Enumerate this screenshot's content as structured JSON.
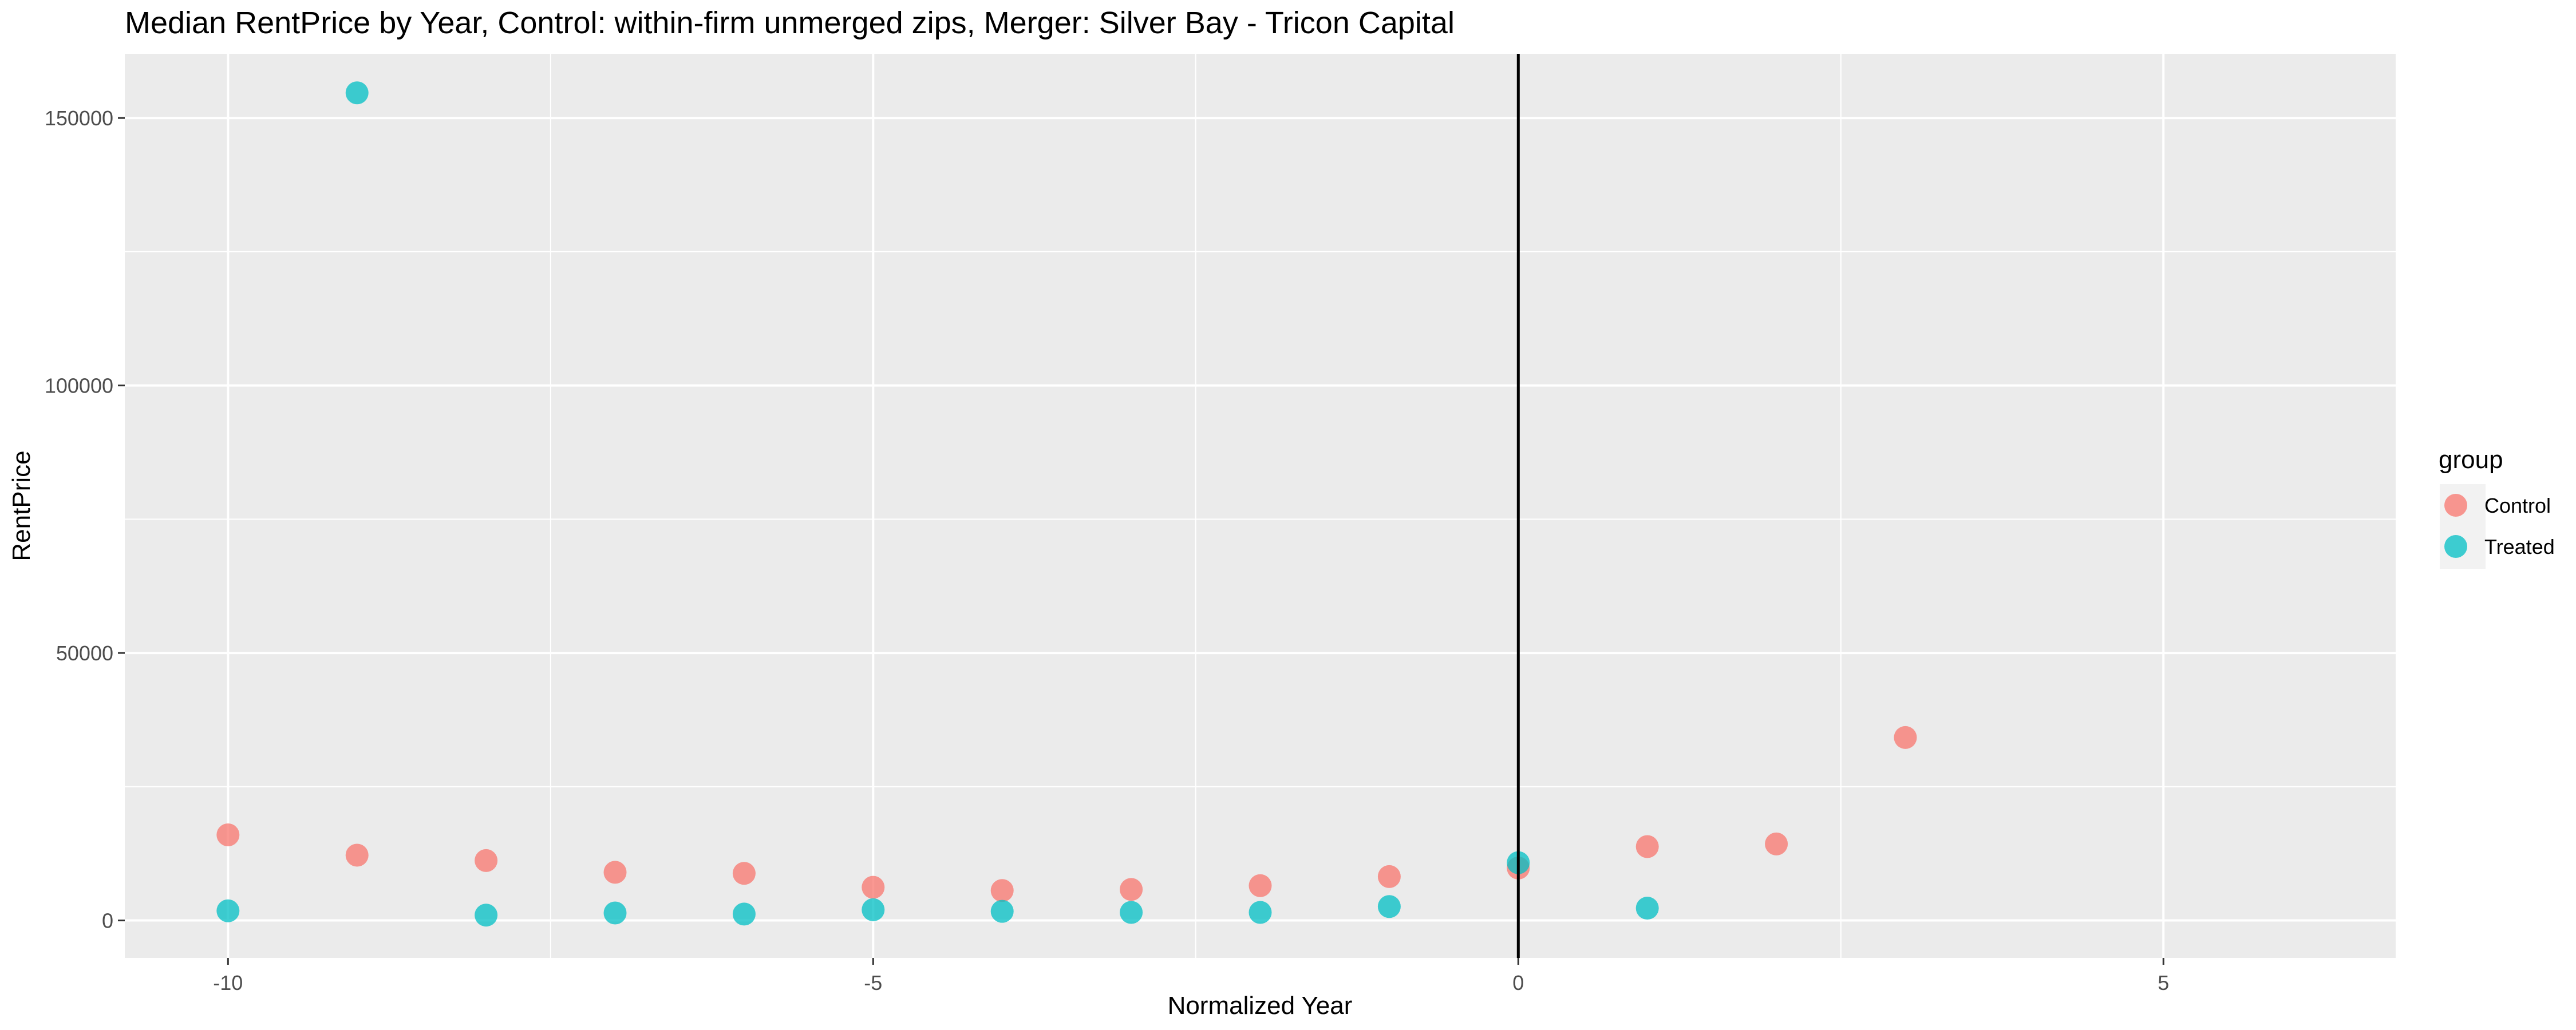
{
  "chart_data": {
    "type": "scatter",
    "title": "Median RentPrice by Year, Control: within-firm unmerged zips, Merger: Silver Bay - Tricon Capital",
    "xlabel": "Normalized Year",
    "ylabel": "RentPrice",
    "xlim": [
      -10.8,
      6.8
    ],
    "ylim": [
      -7000,
      162000
    ],
    "x_ticks": [
      -10,
      -5,
      0,
      5
    ],
    "x_tick_labels": [
      "-10",
      "-5",
      "0",
      "5"
    ],
    "y_ticks": [
      0,
      50000,
      100000,
      150000
    ],
    "y_tick_labels": [
      "0",
      "50000",
      "100000",
      "150000"
    ],
    "x_minor": [
      -7.5,
      -2.5,
      2.5
    ],
    "y_minor": [
      25000,
      75000,
      125000
    ],
    "vline_x": 0,
    "grid": true,
    "legend": {
      "title": "group",
      "position": "right"
    },
    "series": [
      {
        "name": "Control",
        "color": "#F8766D",
        "points": [
          {
            "x": -10,
            "y": 16000
          },
          {
            "x": -9,
            "y": 12200
          },
          {
            "x": -8,
            "y": 11200
          },
          {
            "x": -7,
            "y": 9000
          },
          {
            "x": -6,
            "y": 8800
          },
          {
            "x": -5,
            "y": 6200
          },
          {
            "x": -4,
            "y": 5600
          },
          {
            "x": -3,
            "y": 5800
          },
          {
            "x": -2,
            "y": 6500
          },
          {
            "x": -1,
            "y": 8200
          },
          {
            "x": 0,
            "y": 9800
          },
          {
            "x": 1,
            "y": 13800
          },
          {
            "x": 2,
            "y": 14300
          },
          {
            "x": 3,
            "y": 34200
          }
        ]
      },
      {
        "name": "Treated",
        "color": "#00BFC4",
        "points": [
          {
            "x": -10,
            "y": 1800
          },
          {
            "x": -9,
            "y": 154700
          },
          {
            "x": -8,
            "y": 1000
          },
          {
            "x": -7,
            "y": 1400
          },
          {
            "x": -6,
            "y": 1200
          },
          {
            "x": -5,
            "y": 2000
          },
          {
            "x": -4,
            "y": 1700
          },
          {
            "x": -3,
            "y": 1500
          },
          {
            "x": -2,
            "y": 1500
          },
          {
            "x": -1,
            "y": 2600
          },
          {
            "x": 0,
            "y": 10800
          },
          {
            "x": 1,
            "y": 2300
          }
        ]
      }
    ]
  }
}
